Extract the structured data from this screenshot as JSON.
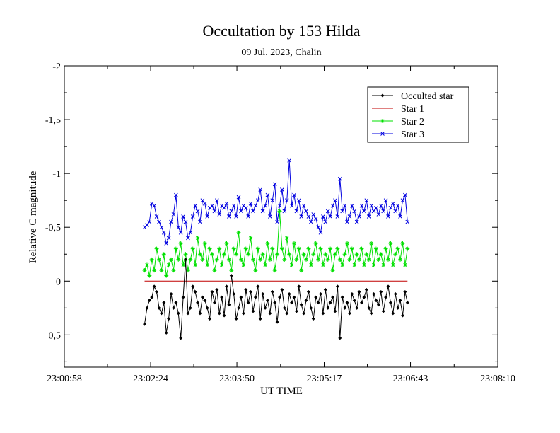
{
  "chart_data": {
    "type": "line",
    "title": "Occultation by 153 Hilda",
    "subtitle": "09 Jul. 2023, Chalin",
    "xlabel": "UT TIME",
    "ylabel": "Relative C magnitude",
    "y_inverted": true,
    "ylim": [
      0.8,
      -2
    ],
    "yticks": [
      {
        "value": -2,
        "label": "-2"
      },
      {
        "value": -1.5,
        "label": "-1,5"
      },
      {
        "value": -1,
        "label": "-1"
      },
      {
        "value": -0.5,
        "label": "-0,5"
      },
      {
        "value": 0,
        "label": "0"
      },
      {
        "value": 0.5,
        "label": "0,5"
      }
    ],
    "xlim_seconds_after_midnight": [
      82858,
      83290
    ],
    "xticks": [
      {
        "value": 82858,
        "label": "23:00:58"
      },
      {
        "value": 82944,
        "label": "23:02:24"
      },
      {
        "value": 83030,
        "label": "23:03:50"
      },
      {
        "value": 83117,
        "label": "23:05:17"
      },
      {
        "value": 83203,
        "label": "23:06:43"
      },
      {
        "value": 83290,
        "label": "23:08:10"
      }
    ],
    "time_range": {
      "start": 82938,
      "end": 83200
    },
    "grid": false,
    "legend_position": "top-right",
    "series": [
      {
        "name": "Occulted star",
        "color": "#000000",
        "marker": "diamond",
        "base": 0.2,
        "noise": 0.1,
        "values": [
          0.4,
          0.25,
          0.18,
          0.15,
          0.05,
          0.1,
          0.25,
          0.3,
          0.2,
          0.48,
          0.35,
          0.12,
          0.25,
          0.2,
          0.3,
          0.53,
          0.15,
          -0.2,
          0.3,
          0.25,
          0.05,
          0.1,
          0.2,
          0.3,
          0.15,
          0.18,
          0.25,
          0.35,
          0.1,
          0.2,
          0.08,
          0.3,
          0.15,
          0.32,
          0.05,
          0.22,
          -0.05,
          0.12,
          0.35,
          0.25,
          0.15,
          0.3,
          0.08,
          0.2,
          0.1,
          0.28,
          0.15,
          0.05,
          0.35,
          0.12,
          0.25,
          0.18,
          0.3,
          0.1,
          0.2,
          0.38,
          0.15,
          0.08,
          0.25,
          0.3,
          0.12,
          0.2,
          0.15,
          0.28,
          0.05,
          0.22,
          0.3,
          0.18,
          0.1,
          0.25,
          0.35,
          0.15,
          0.2,
          0.12,
          0.3,
          0.08,
          0.25,
          0.2,
          0.15,
          0.28,
          0.05,
          0.53,
          0.15,
          0.25,
          0.2,
          0.3,
          0.12,
          0.18,
          0.25,
          0.1,
          0.2,
          0.15,
          0.08,
          0.25,
          0.3,
          0.12,
          0.18,
          0.22,
          0.1,
          0.28,
          0.15,
          0.05,
          0.2,
          0.3,
          0.12,
          0.25,
          0.18,
          0.32,
          0.1,
          0.2
        ]
      },
      {
        "name": "Star 1",
        "color": "#c00000",
        "marker": "none",
        "values": [
          0,
          0
        ]
      },
      {
        "name": "Star 2",
        "color": "#00e000",
        "marker": "asterisk",
        "base": -0.25,
        "noise": 0.13,
        "values": [
          -0.1,
          -0.15,
          -0.05,
          -0.2,
          -0.1,
          -0.3,
          -0.2,
          -0.1,
          -0.25,
          -0.05,
          -0.15,
          -0.2,
          -0.1,
          -0.3,
          -0.2,
          -0.35,
          -0.15,
          -0.25,
          -0.1,
          -0.2,
          -0.3,
          -0.15,
          -0.4,
          -0.25,
          -0.2,
          -0.35,
          -0.15,
          -0.3,
          -0.25,
          -0.1,
          -0.2,
          -0.3,
          -0.15,
          -0.25,
          -0.35,
          -0.2,
          -0.1,
          -0.3,
          -0.25,
          -0.45,
          -0.2,
          -0.15,
          -0.3,
          -0.25,
          -0.4,
          -0.2,
          -0.1,
          -0.3,
          -0.2,
          -0.25,
          -0.15,
          -0.35,
          -0.2,
          -0.3,
          -0.1,
          -0.25,
          -0.65,
          -0.3,
          -0.2,
          -0.4,
          -0.25,
          -0.15,
          -0.35,
          -0.2,
          -0.3,
          -0.1,
          -0.25,
          -0.2,
          -0.3,
          -0.15,
          -0.25,
          -0.35,
          -0.2,
          -0.3,
          -0.15,
          -0.25,
          -0.2,
          -0.3,
          -0.1,
          -0.25,
          -0.3,
          -0.2,
          -0.15,
          -0.25,
          -0.35,
          -0.2,
          -0.3,
          -0.15,
          -0.25,
          -0.2,
          -0.3,
          -0.15,
          -0.25,
          -0.2,
          -0.35,
          -0.15,
          -0.3,
          -0.2,
          -0.25,
          -0.15,
          -0.3,
          -0.2,
          -0.35,
          -0.15,
          -0.25,
          -0.3,
          -0.2,
          -0.35,
          -0.15,
          -0.3
        ]
      },
      {
        "name": "Star 3",
        "color": "#0000e0",
        "marker": "x",
        "base": -0.65,
        "noise": 0.12,
        "values": [
          -0.5,
          -0.52,
          -0.55,
          -0.72,
          -0.7,
          -0.6,
          -0.55,
          -0.5,
          -0.45,
          -0.35,
          -0.4,
          -0.55,
          -0.62,
          -0.8,
          -0.5,
          -0.45,
          -0.6,
          -0.55,
          -0.4,
          -0.45,
          -0.6,
          -0.7,
          -0.65,
          -0.55,
          -0.75,
          -0.72,
          -0.6,
          -0.68,
          -0.7,
          -0.65,
          -0.75,
          -0.62,
          -0.7,
          -0.68,
          -0.72,
          -0.6,
          -0.65,
          -0.7,
          -0.6,
          -0.78,
          -0.65,
          -0.7,
          -0.68,
          -0.6,
          -0.72,
          -0.65,
          -0.7,
          -0.75,
          -0.85,
          -0.65,
          -0.7,
          -0.8,
          -0.6,
          -0.75,
          -0.9,
          -0.55,
          -0.7,
          -0.85,
          -0.65,
          -0.75,
          -1.12,
          -0.7,
          -0.8,
          -0.65,
          -0.75,
          -0.6,
          -0.7,
          -0.65,
          -0.6,
          -0.55,
          -0.62,
          -0.58,
          -0.5,
          -0.45,
          -0.6,
          -0.55,
          -0.65,
          -0.6,
          -0.7,
          -0.75,
          -0.6,
          -0.95,
          -0.65,
          -0.7,
          -0.55,
          -0.6,
          -0.7,
          -0.65,
          -0.55,
          -0.6,
          -0.7,
          -0.65,
          -0.75,
          -0.6,
          -0.7,
          -0.65,
          -0.68,
          -0.62,
          -0.7,
          -0.65,
          -0.75,
          -0.6,
          -0.68,
          -0.72,
          -0.65,
          -0.7,
          -0.6,
          -0.75,
          -0.8,
          -0.55
        ]
      }
    ]
  }
}
